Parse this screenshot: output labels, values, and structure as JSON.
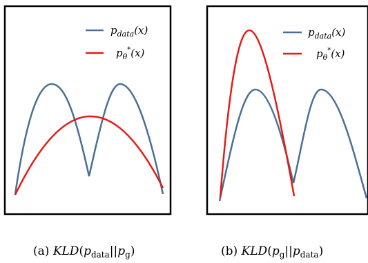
{
  "panels": [
    {
      "id": "a",
      "legend": [
        {
          "base": "p",
          "sub": "data",
          "sup": "",
          "tail": "(x)",
          "color": "#4a6f96"
        },
        {
          "base": "p",
          "sub": "θ",
          "sup": "*",
          "tail": "(x)",
          "color": "#e41b17"
        }
      ],
      "caption": {
        "prefix": "(a) ",
        "fn": "KLD",
        "open": "(",
        "p1": "p",
        "s1": "data",
        "sep": "||",
        "p2": "p",
        "s2": "g",
        "close": ")"
      }
    },
    {
      "id": "b",
      "legend": [
        {
          "base": "p",
          "sub": "data",
          "sup": "",
          "tail": "(x)",
          "color": "#4a6f96"
        },
        {
          "base": "p",
          "sub": "θ",
          "sup": "*",
          "tail": "(x)",
          "color": "#e41b17"
        }
      ],
      "caption": {
        "prefix": "(b) ",
        "fn": "KLD",
        "open": "(",
        "p1": "p",
        "s1": "g",
        "sep": "||",
        "p2": "p",
        "s2": "data",
        "close": ")"
      }
    }
  ],
  "colors": {
    "data_curve": "#4a6f96",
    "model_curve": "#e41b17",
    "frame": "#000000"
  }
}
